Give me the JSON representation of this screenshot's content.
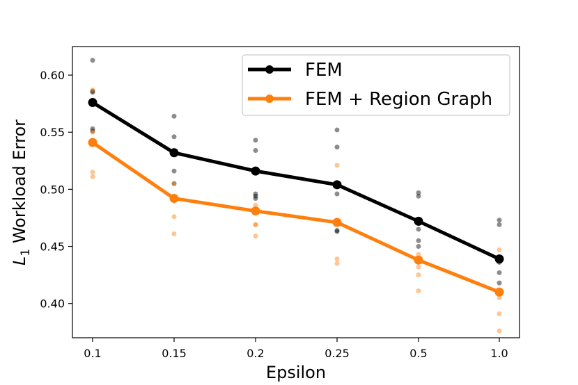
{
  "chart_data": {
    "type": "line",
    "categories": [
      "0.1",
      "0.15",
      "0.2",
      "0.25",
      "0.5",
      "1.0"
    ],
    "xlabel": "Epsilon",
    "ylabel_main": "L",
    "ylabel_sub": "1",
    "ylabel_rest": " Workload Error",
    "ylim": [
      0.37,
      0.625
    ],
    "yticks": [
      "0.40",
      "0.45",
      "0.50",
      "0.55",
      "0.60"
    ],
    "legend_placement": "top-right",
    "series": [
      {
        "name": "FEM",
        "color": "#000000",
        "values": [
          0.576,
          0.532,
          0.516,
          0.504,
          0.472,
          0.439
        ],
        "samples": [
          [
            0.613,
            0.585,
            0.553,
            0.551,
            0.586
          ],
          [
            0.564,
            0.546,
            0.516,
            0.505,
            0.491
          ],
          [
            0.543,
            0.534,
            0.496,
            0.494,
            0.492
          ],
          [
            0.552,
            0.537,
            0.496,
            0.464,
            0.463
          ],
          [
            0.497,
            0.494,
            0.465,
            0.455,
            0.45
          ],
          [
            0.473,
            0.469,
            0.436,
            0.427,
            0.418
          ]
        ]
      },
      {
        "name": "FEM + Region Graph",
        "color": "#ff7f0e",
        "values": [
          0.541,
          0.492,
          0.481,
          0.471,
          0.438,
          0.41
        ],
        "samples": [
          [
            0.587,
            0.55,
            0.515,
            0.511,
            0.541
          ],
          [
            0.505,
            0.49,
            0.476,
            0.461,
            0.492
          ],
          [
            0.486,
            0.469,
            0.459,
            0.481,
            0.469
          ],
          [
            0.521,
            0.471,
            0.439,
            0.435,
            0.471
          ],
          [
            0.443,
            0.432,
            0.425,
            0.411,
            0.438
          ],
          [
            0.447,
            0.405,
            0.391,
            0.376,
            0.41
          ]
        ]
      }
    ]
  }
}
